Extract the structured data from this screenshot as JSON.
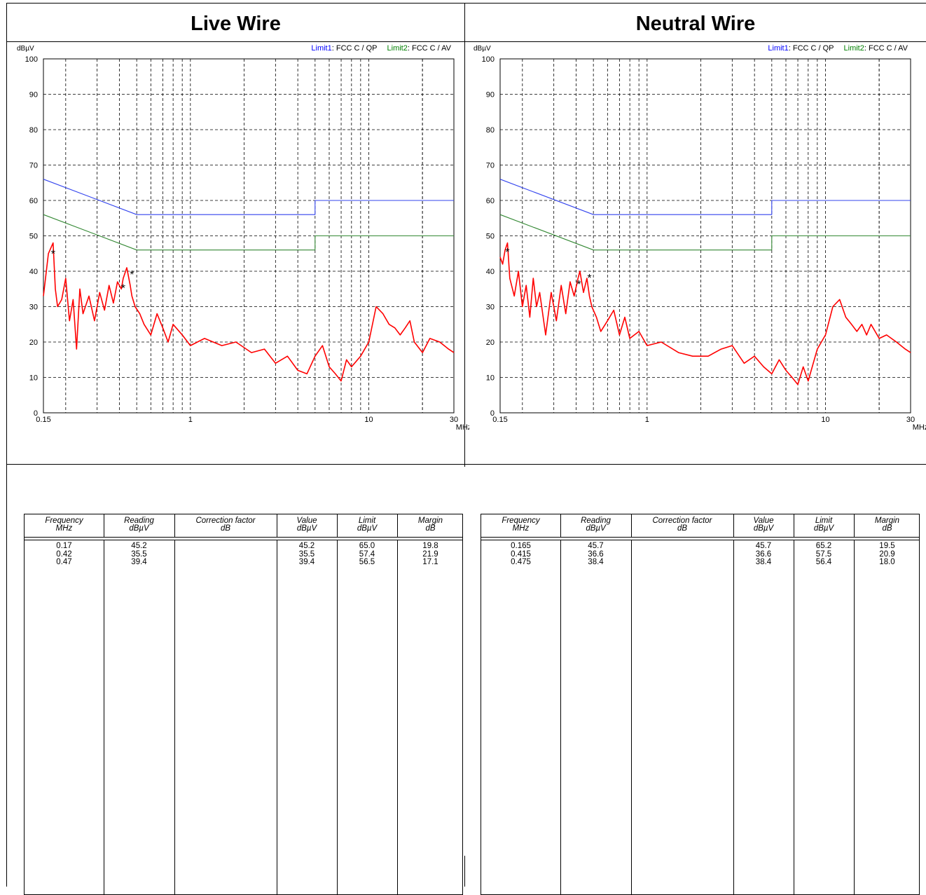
{
  "headers": {
    "left": "Live Wire",
    "right": "Neutral Wire"
  },
  "chart_data": [
    {
      "type": "line",
      "title": "Live Wire",
      "ylabel": "dBµV",
      "xlabel": "MHz",
      "xscale": "log",
      "xlim": [
        0.15,
        30
      ],
      "ylim": [
        0,
        100
      ],
      "yticks": [
        "0",
        "10",
        "20",
        "30",
        "40",
        "50",
        "60",
        "70",
        "80",
        "90",
        "100"
      ],
      "xtick_labels": [
        "0.15",
        "1",
        "10",
        "30"
      ],
      "grid": true,
      "legend": [
        {
          "label": "Limit1",
          "text": ": FCC C / QP",
          "color": "#0000ff"
        },
        {
          "label": "Limit2",
          "text": ": FCC C / AV",
          "color": "#008000"
        }
      ],
      "series": [
        {
          "name": "Limit1",
          "color": "#3344ee",
          "x": [
            0.15,
            0.5,
            0.5,
            5,
            5,
            30
          ],
          "y": [
            66,
            56,
            56,
            56,
            60,
            60
          ]
        },
        {
          "name": "Limit2",
          "color": "#338833",
          "x": [
            0.15,
            0.5,
            0.5,
            5,
            5,
            30
          ],
          "y": [
            56,
            46,
            46,
            46,
            50,
            50
          ]
        },
        {
          "color": "#ff0000",
          "x": [
            0.15,
            0.16,
            0.17,
            0.175,
            0.18,
            0.19,
            0.2,
            0.21,
            0.22,
            0.23,
            0.24,
            0.25,
            0.27,
            0.29,
            0.31,
            0.33,
            0.35,
            0.37,
            0.39,
            0.41,
            0.42,
            0.44,
            0.46,
            0.47,
            0.49,
            0.52,
            0.55,
            0.6,
            0.65,
            0.7,
            0.75,
            0.8,
            0.9,
            1.0,
            1.2,
            1.5,
            1.8,
            2.2,
            2.6,
            3.0,
            3.5,
            4.0,
            4.5,
            5.0,
            5.5,
            6.0,
            6.5,
            7.0,
            7.5,
            8.0,
            9.0,
            10.0,
            11.0,
            12.0,
            13.0,
            14.0,
            15.0,
            16.0,
            17.0,
            18.0,
            20.0,
            22.0,
            25.0,
            28.0,
            30.0
          ],
          "y": [
            33,
            45,
            48,
            35,
            30,
            32,
            38,
            26,
            32,
            18,
            35,
            28,
            33,
            26,
            34,
            29,
            36,
            31,
            37,
            35,
            38,
            41,
            36,
            33,
            30,
            28,
            25,
            22,
            28,
            24,
            20,
            25,
            22,
            19,
            21,
            19,
            20,
            17,
            18,
            14,
            16,
            12,
            11,
            16,
            19,
            13,
            11,
            9,
            15,
            13,
            16,
            20,
            30,
            28,
            25,
            24,
            22,
            24,
            26,
            20,
            17,
            21,
            20,
            18,
            17
          ]
        },
        {
          "type": "scatter",
          "marker": "*",
          "color": "#000000",
          "x": [
            0.17,
            0.42,
            0.47
          ],
          "y": [
            45.2,
            35.5,
            39.4
          ]
        }
      ],
      "table": {
        "columns": [
          {
            "name": "Frequency",
            "unit": "MHz"
          },
          {
            "name": "Reading",
            "unit": "dBµV"
          },
          {
            "name": "Correction factor",
            "unit": "dB"
          },
          {
            "name": "Value",
            "unit": "dBµV"
          },
          {
            "name": "Limit",
            "unit": "dBµV"
          },
          {
            "name": "Margin",
            "unit": "dB"
          }
        ],
        "rows": [
          [
            "0.17",
            "45.2",
            "",
            "45.2",
            "65.0",
            "19.8"
          ],
          [
            "0.42",
            "35.5",
            "",
            "35.5",
            "57.4",
            "21.9"
          ],
          [
            "0.47",
            "39.4",
            "",
            "39.4",
            "56.5",
            "17.1"
          ]
        ]
      }
    },
    {
      "type": "line",
      "title": "Neutral Wire",
      "ylabel": "dBµV",
      "xlabel": "MHz",
      "xscale": "log",
      "xlim": [
        0.15,
        30
      ],
      "ylim": [
        0,
        100
      ],
      "yticks": [
        "0",
        "10",
        "20",
        "30",
        "40",
        "50",
        "60",
        "70",
        "80",
        "90",
        "100"
      ],
      "xtick_labels": [
        "0.15",
        "1",
        "10",
        "30"
      ],
      "grid": true,
      "legend": [
        {
          "label": "Limit1",
          "text": ": FCC C / QP",
          "color": "#0000ff"
        },
        {
          "label": "Limit2",
          "text": ": FCC C / AV",
          "color": "#008000"
        }
      ],
      "series": [
        {
          "name": "Limit1",
          "color": "#3344ee",
          "x": [
            0.15,
            0.5,
            0.5,
            5,
            5,
            30
          ],
          "y": [
            66,
            56,
            56,
            56,
            60,
            60
          ]
        },
        {
          "name": "Limit2",
          "color": "#338833",
          "x": [
            0.15,
            0.5,
            0.5,
            5,
            5,
            30
          ],
          "y": [
            56,
            46,
            46,
            46,
            50,
            50
          ]
        },
        {
          "color": "#ff0000",
          "x": [
            0.15,
            0.155,
            0.16,
            0.165,
            0.17,
            0.18,
            0.19,
            0.2,
            0.21,
            0.22,
            0.23,
            0.24,
            0.25,
            0.27,
            0.29,
            0.31,
            0.33,
            0.35,
            0.37,
            0.39,
            0.41,
            0.42,
            0.44,
            0.46,
            0.475,
            0.49,
            0.52,
            0.55,
            0.6,
            0.65,
            0.7,
            0.75,
            0.8,
            0.9,
            1.0,
            1.2,
            1.5,
            1.8,
            2.2,
            2.6,
            3.0,
            3.5,
            4.0,
            4.5,
            5.0,
            5.5,
            6.0,
            6.5,
            7.0,
            7.5,
            8.0,
            9.0,
            10.0,
            11.0,
            12.0,
            13.0,
            14.0,
            15.0,
            16.0,
            17.0,
            18.0,
            20.0,
            22.0,
            25.0,
            28.0,
            30.0
          ],
          "y": [
            44,
            42,
            46,
            48,
            38,
            33,
            40,
            30,
            36,
            27,
            38,
            30,
            34,
            22,
            34,
            26,
            36,
            28,
            37,
            33,
            38,
            40,
            34,
            38,
            33,
            30,
            27,
            23,
            26,
            29,
            22,
            27,
            21,
            23,
            19,
            20,
            17,
            16,
            16,
            18,
            19,
            14,
            16,
            13,
            11,
            15,
            12,
            10,
            8,
            13,
            9,
            18,
            22,
            30,
            32,
            27,
            25,
            23,
            25,
            22,
            25,
            21,
            22,
            20,
            18,
            17
          ]
        },
        {
          "type": "scatter",
          "marker": "*",
          "color": "#000000",
          "x": [
            0.165,
            0.415,
            0.475
          ],
          "y": [
            45.7,
            36.6,
            38.4
          ]
        }
      ],
      "table": {
        "columns": [
          {
            "name": "Frequency",
            "unit": "MHz"
          },
          {
            "name": "Reading",
            "unit": "dBµV"
          },
          {
            "name": "Correction factor",
            "unit": "dB"
          },
          {
            "name": "Value",
            "unit": "dBµV"
          },
          {
            "name": "Limit",
            "unit": "dBµV"
          },
          {
            "name": "Margin",
            "unit": "dB"
          }
        ],
        "rows": [
          [
            "0.165",
            "45.7",
            "",
            "45.7",
            "65.2",
            "19.5"
          ],
          [
            "0.415",
            "36.6",
            "",
            "36.6",
            "57.5",
            "20.9"
          ],
          [
            "0.475",
            "38.4",
            "",
            "38.4",
            "56.4",
            "18.0"
          ]
        ]
      }
    }
  ]
}
